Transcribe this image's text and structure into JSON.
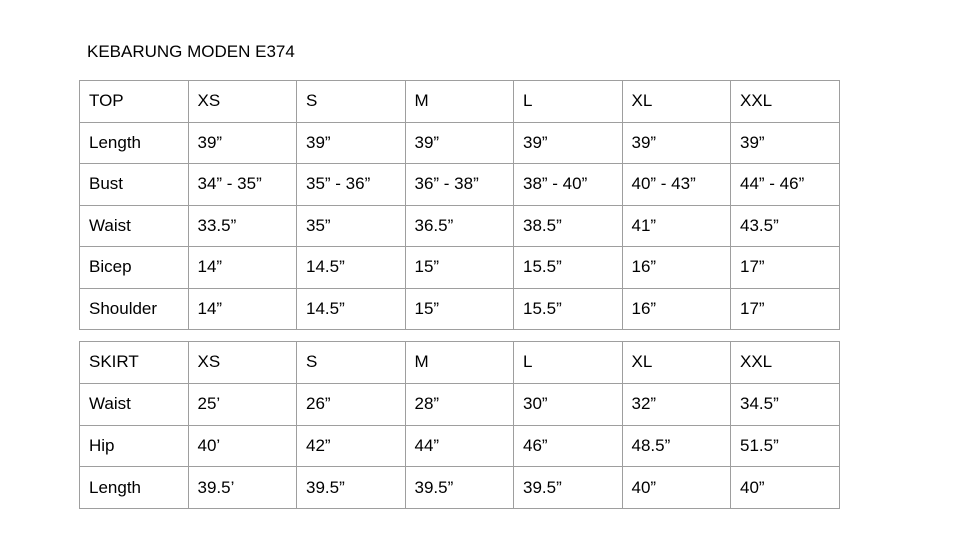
{
  "title": "KEBARUNG MODEN E374",
  "top_table": {
    "header": [
      "TOP",
      "XS",
      "S",
      "M",
      "L",
      "XL",
      "XXL"
    ],
    "rows": [
      [
        "Length",
        "39”",
        "39”",
        "39”",
        "39”",
        "39”",
        "39”"
      ],
      [
        "Bust",
        "34” - 35”",
        "35” - 36”",
        "36” - 38”",
        "38” - 40”",
        "40” - 43”",
        "44” - 46”"
      ],
      [
        "Waist",
        "33.5”",
        "35”",
        "36.5”",
        "38.5”",
        "41”",
        "43.5”"
      ],
      [
        "Bicep",
        "14”",
        "14.5”",
        "15”",
        "15.5”",
        "16”",
        "17”"
      ],
      [
        "Shoulder",
        "14”",
        "14.5”",
        "15”",
        "15.5”",
        "16”",
        "17”"
      ]
    ]
  },
  "skirt_table": {
    "header": [
      "SKIRT",
      "XS",
      "S",
      "M",
      "L",
      "XL",
      "XXL"
    ],
    "rows": [
      [
        "Waist",
        "25’",
        "26”",
        "28”",
        "30”",
        "32”",
        "34.5”"
      ],
      [
        "Hip",
        "40’",
        "42”",
        "44”",
        "46”",
        "48.5”",
        "51.5”"
      ],
      [
        "Length",
        "39.5’",
        "39.5”",
        "39.5”",
        "39.5”",
        "40”",
        "40”"
      ]
    ]
  }
}
